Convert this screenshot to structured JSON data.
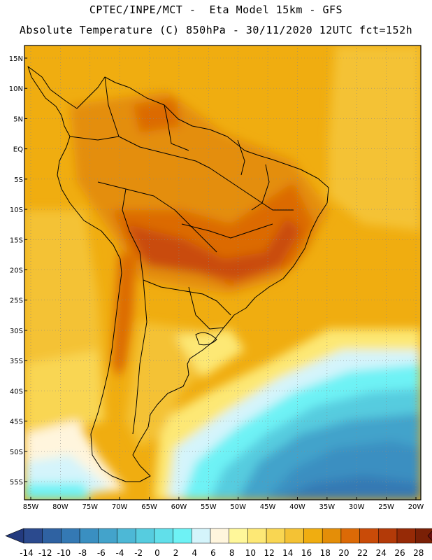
{
  "header": {
    "line1": "CPTEC/INPE/MCT -  Eta Model 15km - GFS",
    "line2": "Absolute Temperature (C) 850hPa - 30/11/2020 12UTC fct=152h"
  },
  "map": {
    "lat_labels": [
      "15N",
      "10N",
      "5N",
      "EQ",
      "5S",
      "10S",
      "15S",
      "20S",
      "25S",
      "30S",
      "35S",
      "40S",
      "45S",
      "50S",
      "55S"
    ],
    "lon_labels": [
      "85W",
      "80W",
      "75W",
      "70W",
      "65W",
      "60W",
      "55W",
      "50W",
      "45W",
      "40W",
      "35W",
      "30W",
      "25W",
      "20W"
    ],
    "lat_values": [
      15,
      10,
      5,
      0,
      -5,
      -10,
      -15,
      -20,
      -25,
      -30,
      -35,
      -40,
      -45,
      -50,
      -55
    ],
    "lon_values": [
      -85,
      -80,
      -75,
      -70,
      -65,
      -60,
      -55,
      -50,
      -45,
      -40,
      -35,
      -30,
      -25,
      -20
    ],
    "lat_range": [
      15,
      -55
    ],
    "lon_range": [
      -85,
      -20
    ],
    "variable": "Absolute Temperature (C)",
    "level": "850hPa"
  },
  "colorbar": {
    "labels": [
      "-14",
      "-12",
      "-10",
      "-8",
      "-6",
      "-4",
      "-2",
      "0",
      "2",
      "4",
      "6",
      "8",
      "10",
      "12",
      "14",
      "16",
      "18",
      "20",
      "22",
      "24",
      "26",
      "28"
    ],
    "colors": [
      "#2b4a8e",
      "#2f62a2",
      "#3479b4",
      "#3a8fc1",
      "#43a3cb",
      "#4db8d6",
      "#56ccdf",
      "#61dfea",
      "#6ef2f5",
      "#d4f4fb",
      "#fff5dd",
      "#fff79a",
      "#fde875",
      "#f9d652",
      "#f4c234",
      "#f0ad10",
      "#e48e08",
      "#dc6a06",
      "#c94b08",
      "#b33a08",
      "#962a06",
      "#7a2006"
    ],
    "under_color": "#233a7e",
    "over_color": "#6a1010"
  }
}
